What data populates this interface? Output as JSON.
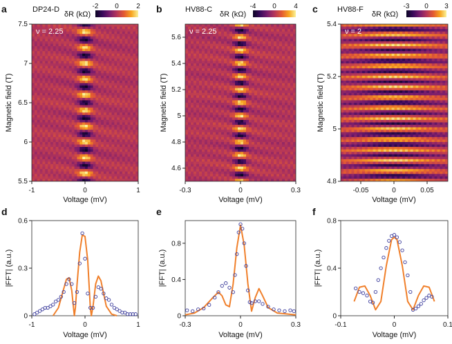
{
  "colors": {
    "fit_line": "#f07f2a",
    "data_points": "#3b3c9c",
    "colormap": [
      "#0b0524",
      "#3a0a5c",
      "#7a1d6d",
      "#b4355a",
      "#e35a32",
      "#f8a51f",
      "#f9f29b"
    ]
  },
  "heatmaps": [
    {
      "letter": "a",
      "sample": "DP24-D",
      "nu_label": "ν = 2.25",
      "cbar_label": "δR (kΩ)",
      "cbar_ticks": [
        "-2",
        "0",
        "2"
      ],
      "xlabel": "Voltage (mV)",
      "ylabel": "Magnetic field (T)",
      "xticks": [
        "-1",
        "0",
        "1"
      ],
      "yticks": [
        "5.5",
        "6",
        "6.5",
        "7",
        "7.5"
      ]
    },
    {
      "letter": "b",
      "sample": "HV88-C",
      "nu_label": "ν = 2.25",
      "cbar_label": "δR (kΩ)",
      "cbar_ticks": [
        "-4",
        "0",
        "4"
      ],
      "xlabel": "Voltage (mV)",
      "ylabel": "Magnetic field (T)",
      "xticks": [
        "-0.3",
        "0",
        "0.3"
      ],
      "yticks": [
        "4.6",
        "4.8",
        "5",
        "5.2",
        "5.4",
        "5.6"
      ]
    },
    {
      "letter": "c",
      "sample": "HV88-F",
      "nu_label": "ν = 2",
      "cbar_label": "δR (kΩ)",
      "cbar_ticks": [
        "-3",
        "0",
        "3"
      ],
      "xlabel": "Voltage (mV)",
      "ylabel": "Magnetic field (T)",
      "xticks": [
        "-0.05",
        "0",
        "0.05"
      ],
      "yticks": [
        "4.8",
        "5",
        "5.2",
        "5.4"
      ]
    }
  ],
  "chart_data": [
    {
      "type": "heatmap",
      "panel": "a",
      "xlim": [
        -1,
        1
      ],
      "ylim": [
        5.5,
        7.5
      ],
      "colorbar_range": [
        -2,
        2
      ],
      "fringe_period_T": 0.2,
      "central_voltage_mV": 0
    },
    {
      "type": "heatmap",
      "panel": "b",
      "xlim": [
        -0.3,
        0.3
      ],
      "ylim": [
        4.5,
        5.7
      ],
      "colorbar_range": [
        -4,
        4
      ],
      "fringe_period_T": 0.1,
      "central_voltage_mV": 0
    },
    {
      "type": "heatmap",
      "panel": "c",
      "xlim": [
        -0.08,
        0.08
      ],
      "ylim": [
        4.8,
        5.4
      ],
      "colorbar_range": [
        -3,
        3
      ],
      "fringe_period_T": 0.04,
      "central_voltage_mV": 0
    },
    {
      "type": "line",
      "panel": "d",
      "xlabel": "Voltage (mV)",
      "ylabel": "|FFT| (a.u.)",
      "xlim": [
        -1,
        1
      ],
      "ylim": [
        0,
        0.6
      ],
      "xticks": [
        "-1",
        "0",
        "1"
      ],
      "yticks": [
        "0",
        "0.3",
        "0.6"
      ],
      "series": [
        {
          "kind": "line",
          "x": [
            -0.6,
            -0.5,
            -0.4,
            -0.35,
            -0.3,
            -0.25,
            -0.22,
            -0.2,
            -0.18,
            -0.15,
            -0.1,
            -0.05,
            0,
            0.05,
            0.08,
            0.1,
            0.12,
            0.15,
            0.2,
            0.25,
            0.3,
            0.35,
            0.4,
            0.5,
            0.6
          ],
          "y": [
            0.0,
            0.05,
            0.17,
            0.23,
            0.24,
            0.16,
            0.06,
            0.0,
            0.05,
            0.2,
            0.4,
            0.51,
            0.5,
            0.35,
            0.17,
            0.05,
            0.0,
            0.06,
            0.2,
            0.25,
            0.22,
            0.14,
            0.06,
            0.01,
            0.0
          ]
        },
        {
          "kind": "points",
          "x": [
            -0.95,
            -0.9,
            -0.85,
            -0.8,
            -0.75,
            -0.7,
            -0.65,
            -0.6,
            -0.55,
            -0.5,
            -0.45,
            -0.4,
            -0.35,
            -0.3,
            -0.25,
            -0.2,
            -0.15,
            -0.1,
            -0.05,
            0,
            0.05,
            0.1,
            0.15,
            0.2,
            0.25,
            0.3,
            0.35,
            0.4,
            0.45,
            0.5,
            0.55,
            0.6,
            0.65,
            0.7,
            0.75,
            0.8,
            0.85,
            0.9,
            0.95
          ],
          "y": [
            0.01,
            0.02,
            0.03,
            0.04,
            0.05,
            0.05,
            0.06,
            0.07,
            0.09,
            0.1,
            0.12,
            0.15,
            0.2,
            0.23,
            0.2,
            0.08,
            0.15,
            0.33,
            0.52,
            0.36,
            0.14,
            0.05,
            0.05,
            0.12,
            0.18,
            0.17,
            0.14,
            0.11,
            0.1,
            0.07,
            0.05,
            0.04,
            0.03,
            0.02,
            0.02,
            0.01,
            0.01,
            0.01,
            0.01
          ]
        }
      ]
    },
    {
      "type": "line",
      "panel": "e",
      "xlabel": "Voltage (mV)",
      "ylabel": "|FFT| (a.u.)",
      "xlim": [
        -0.3,
        0.3
      ],
      "ylim": [
        0,
        1.05
      ],
      "xticks": [
        "-0.3",
        "0",
        "0.3"
      ],
      "yticks": [
        "0",
        "0.4",
        "0.8"
      ],
      "series": [
        {
          "kind": "line",
          "x": [
            -0.3,
            -0.25,
            -0.2,
            -0.15,
            -0.12,
            -0.1,
            -0.08,
            -0.06,
            -0.04,
            -0.02,
            0,
            0.02,
            0.04,
            0.06,
            0.08,
            0.1,
            0.12,
            0.15,
            0.2,
            0.25,
            0.3
          ],
          "y": [
            0.01,
            0.03,
            0.09,
            0.2,
            0.26,
            0.22,
            0.12,
            0.1,
            0.35,
            0.75,
            1.0,
            0.78,
            0.35,
            0.05,
            0.2,
            0.3,
            0.22,
            0.09,
            0.03,
            0.02,
            0.01
          ]
        },
        {
          "kind": "points",
          "x": [
            -0.29,
            -0.26,
            -0.23,
            -0.2,
            -0.17,
            -0.14,
            -0.12,
            -0.1,
            -0.08,
            -0.06,
            -0.04,
            -0.03,
            -0.02,
            -0.01,
            0,
            0.01,
            0.02,
            0.03,
            0.04,
            0.05,
            0.06,
            0.08,
            0.1,
            0.12,
            0.15,
            0.18,
            0.21,
            0.24,
            0.27,
            0.29
          ],
          "y": [
            0.06,
            0.05,
            0.07,
            0.08,
            0.12,
            0.2,
            0.26,
            0.33,
            0.36,
            0.31,
            0.26,
            0.45,
            0.68,
            0.92,
            1.01,
            0.96,
            0.8,
            0.55,
            0.28,
            0.15,
            0.14,
            0.16,
            0.16,
            0.13,
            0.1,
            0.07,
            0.06,
            0.05,
            0.06,
            0.05
          ]
        }
      ]
    },
    {
      "type": "line",
      "panel": "f",
      "xlabel": "Voltage (mV)",
      "ylabel": "|FFT| (a.u.)",
      "xlim": [
        -0.1,
        0.1
      ],
      "ylim": [
        0,
        0.8
      ],
      "xticks": [
        "-0.1",
        "0",
        "0.1"
      ],
      "yticks": [
        "0",
        "0.4",
        "0.8"
      ],
      "series": [
        {
          "kind": "line",
          "x": [
            -0.075,
            -0.065,
            -0.055,
            -0.045,
            -0.035,
            -0.025,
            -0.015,
            -0.005,
            0,
            0.005,
            0.015,
            0.025,
            0.035,
            0.045,
            0.055,
            0.065,
            0.075
          ],
          "y": [
            0.12,
            0.24,
            0.25,
            0.17,
            0.05,
            0.12,
            0.42,
            0.64,
            0.66,
            0.64,
            0.42,
            0.12,
            0.05,
            0.17,
            0.25,
            0.24,
            0.12
          ]
        },
        {
          "kind": "points",
          "x": [
            -0.072,
            -0.065,
            -0.058,
            -0.051,
            -0.045,
            -0.04,
            -0.035,
            -0.03,
            -0.025,
            -0.02,
            -0.015,
            -0.01,
            -0.005,
            0,
            0.005,
            0.01,
            0.015,
            0.02,
            0.025,
            0.03,
            0.035,
            0.04,
            0.045,
            0.05,
            0.055,
            0.06,
            0.065,
            0.07
          ],
          "y": [
            0.23,
            0.2,
            0.19,
            0.17,
            0.12,
            0.11,
            0.2,
            0.3,
            0.4,
            0.49,
            0.57,
            0.63,
            0.67,
            0.68,
            0.66,
            0.62,
            0.55,
            0.45,
            0.34,
            0.2,
            0.05,
            0.06,
            0.08,
            0.1,
            0.13,
            0.15,
            0.17,
            0.16
          ]
        }
      ]
    }
  ]
}
